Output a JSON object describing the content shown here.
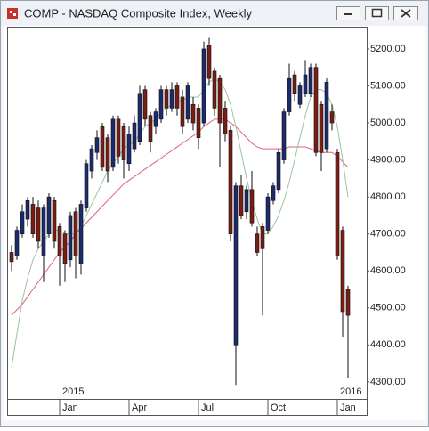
{
  "window": {
    "title": "COMP - NASDAQ Composite Index, Weekly"
  },
  "chart_data": {
    "type": "candlestick",
    "categories": [
      null,
      null,
      null,
      null,
      null,
      null,
      null,
      null,
      null,
      "Jan",
      null,
      null,
      null,
      null,
      null,
      null,
      null,
      null,
      null,
      null,
      null,
      null,
      "Apr",
      null,
      null,
      null,
      null,
      null,
      null,
      null,
      null,
      null,
      null,
      null,
      null,
      "Jul",
      null,
      null,
      null,
      null,
      null,
      null,
      null,
      null,
      null,
      null,
      null,
      null,
      "Oct",
      null,
      null,
      null,
      null,
      null,
      null,
      null,
      null,
      null,
      null,
      null,
      null,
      "Jan",
      null,
      null
    ],
    "year_labels": [
      null,
      null,
      null,
      null,
      null,
      null,
      null,
      null,
      null,
      "2015",
      null,
      null,
      null,
      null,
      null,
      null,
      null,
      null,
      null,
      null,
      null,
      null,
      null,
      null,
      null,
      null,
      null,
      null,
      null,
      null,
      null,
      null,
      null,
      null,
      null,
      null,
      null,
      null,
      null,
      null,
      null,
      null,
      null,
      null,
      null,
      null,
      null,
      null,
      null,
      null,
      null,
      null,
      null,
      null,
      null,
      null,
      null,
      null,
      null,
      null,
      null,
      "2016",
      null,
      null
    ],
    "open": [
      4650,
      4640,
      4700,
      4740,
      4780,
      4770,
      4640,
      4700,
      4790,
      4720,
      4700,
      4630,
      4760,
      4620,
      4770,
      4870,
      4920,
      4990,
      4960,
      4880,
      5010,
      4990,
      4890,
      4930,
      4950,
      5090,
      5020,
      4990,
      5010,
      5090,
      5040,
      5100,
      5070,
      5010,
      5050,
      5040,
      5000,
      5210,
      5140,
      5120,
      5040,
      4980,
      4400,
      4830,
      4760,
      4820,
      4700,
      4720,
      4710,
      4790,
      4820,
      4900,
      5030,
      5130,
      5050,
      5080,
      5080,
      5150,
      5050,
      4930,
      5030,
      4920,
      4710,
      4550
    ],
    "high": [
      4670,
      4720,
      4780,
      4800,
      4800,
      4790,
      4780,
      4810,
      4800,
      4730,
      4710,
      4760,
      4770,
      4790,
      4900,
      4940,
      4980,
      5000,
      4970,
      5020,
      5020,
      5000,
      4990,
      5020,
      5100,
      5100,
      5030,
      5040,
      5100,
      5100,
      5110,
      5110,
      5090,
      5110,
      5070,
      5050,
      5220,
      5230,
      5150,
      5130,
      5060,
      4990,
      4840,
      4860,
      4830,
      4870,
      4720,
      4730,
      4810,
      4840,
      4930,
      5040,
      5160,
      5140,
      5110,
      5170,
      5160,
      5160,
      5060,
      5120,
      5050,
      4930,
      4720,
      4560
    ],
    "low": [
      4600,
      4630,
      4690,
      4720,
      4690,
      4660,
      4570,
      4690,
      4660,
      4560,
      4570,
      4610,
      4580,
      4590,
      4760,
      4850,
      4900,
      4870,
      4840,
      4870,
      4890,
      4850,
      4870,
      4920,
      4940,
      4990,
      4920,
      4970,
      5000,
      5020,
      5030,
      5020,
      4970,
      5000,
      4980,
      4930,
      4990,
      5100,
      5020,
      4880,
      4950,
      4680,
      4292,
      4740,
      4740,
      4720,
      4640,
      4480,
      4700,
      4780,
      4810,
      4890,
      5020,
      5060,
      5040,
      5070,
      5070,
      4910,
      4870,
      4920,
      4980,
      4630,
      4420,
      4310
    ],
    "close": [
      4625,
      4710,
      4760,
      4790,
      4700,
      4680,
      4770,
      4800,
      4680,
      4640,
      4620,
      4750,
      4640,
      4780,
      4890,
      4930,
      4960,
      4880,
      4870,
      5010,
      4910,
      4900,
      4970,
      5000,
      5080,
      5010,
      4950,
      5030,
      5090,
      5040,
      5090,
      5040,
      4990,
      5100,
      5000,
      4960,
      5200,
      5120,
      5040,
      5000,
      4970,
      4700,
      4830,
      4750,
      4820,
      4730,
      4650,
      4660,
      4800,
      4830,
      4920,
      5030,
      5120,
      5080,
      5100,
      5130,
      5150,
      4920,
      4920,
      5110,
      5000,
      4640,
      4490,
      4480
    ],
    "up_color": "#1c2a6e",
    "down_color": "#7a1e14",
    "lines": [
      {
        "color": "#e0607e",
        "values": [
          4480,
          4495,
          4510,
          4530,
          4550,
          4570,
          4590,
          4610,
          4630,
          4650,
          4665,
          4680,
          4700,
          4715,
          4730,
          4745,
          4760,
          4775,
          4790,
          4805,
          4820,
          4835,
          4845,
          4855,
          4865,
          4875,
          4885,
          4895,
          4905,
          4915,
          4925,
          4935,
          4945,
          4955,
          4965,
          4975,
          4990,
          5000,
          5010,
          5010,
          5010,
          5000,
          4990,
          4975,
          4960,
          4945,
          4935,
          4930,
          4930,
          4930,
          4930,
          4930,
          4935,
          4935,
          4935,
          4935,
          4930,
          4925,
          4920,
          4920,
          4920,
          4910,
          4895,
          4880
        ]
      },
      {
        "color": "#9cc49c",
        "values": [
          4340,
          4430,
          4520,
          4580,
          4630,
          4660,
          4680,
          4700,
          4710,
          4710,
          4700,
          4700,
          4700,
          4720,
          4750,
          4780,
          4810,
          4840,
          4870,
          4890,
          4910,
          4930,
          4940,
          4950,
          4970,
          4990,
          5000,
          5010,
          5030,
          5040,
          5050,
          5060,
          5060,
          5070,
          5070,
          5070,
          5090,
          5110,
          5120,
          5110,
          5090,
          5050,
          4990,
          4920,
          4850,
          4790,
          4740,
          4700,
          4700,
          4720,
          4750,
          4790,
          4840,
          4900,
          4960,
          5020,
          5070,
          5090,
          5090,
          5080,
          5050,
          4990,
          4900,
          4800
        ]
      }
    ],
    "ylim": [
      4254,
      5260
    ],
    "yticks": [
      {
        "value": 4300,
        "label": "4300.00"
      },
      {
        "value": 4400,
        "label": "4400.00"
      },
      {
        "value": 4500,
        "label": "4500.00"
      },
      {
        "value": 4600,
        "label": "4600.00"
      },
      {
        "value": 4700,
        "label": "4700.00"
      },
      {
        "value": 4800,
        "label": "4800.00"
      },
      {
        "value": 4900,
        "label": "4900.00"
      },
      {
        "value": 5000,
        "label": "5000.00"
      },
      {
        "value": 5100,
        "label": "5100.00"
      },
      {
        "value": 5200,
        "label": "5200.00"
      }
    ]
  }
}
